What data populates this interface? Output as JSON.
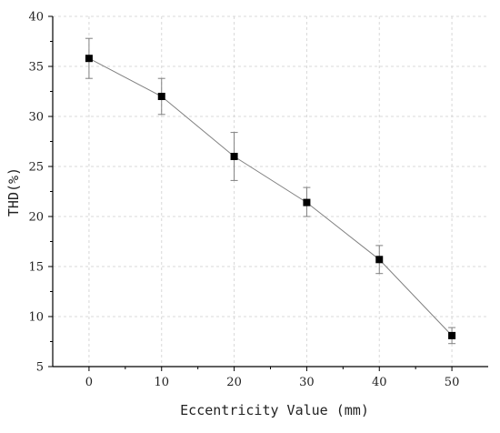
{
  "chart_data": {
    "type": "line",
    "title": "",
    "xlabel": "Eccentricity Value (mm)",
    "ylabel": "THD(%)",
    "xlim": [
      -5,
      55
    ],
    "ylim": [
      5,
      40
    ],
    "x_ticks": [
      0,
      10,
      20,
      30,
      40,
      50
    ],
    "y_ticks": [
      5,
      10,
      15,
      20,
      25,
      30,
      35,
      40
    ],
    "grid": true,
    "legend": "none",
    "marker": "square",
    "colors": {
      "line": "#808080",
      "marker": "#000000",
      "error_bar": "#808080",
      "grid": "#d8d8d8"
    },
    "series": [
      {
        "x": [
          0,
          10,
          20,
          30,
          40,
          50
        ],
        "y": [
          35.8,
          32.0,
          26.0,
          21.4,
          15.7,
          8.1
        ],
        "error_upper": [
          37.8,
          33.8,
          28.4,
          22.9,
          17.1,
          8.9
        ],
        "error_lower": [
          33.8,
          30.2,
          23.6,
          20.0,
          14.3,
          7.3
        ]
      }
    ]
  }
}
